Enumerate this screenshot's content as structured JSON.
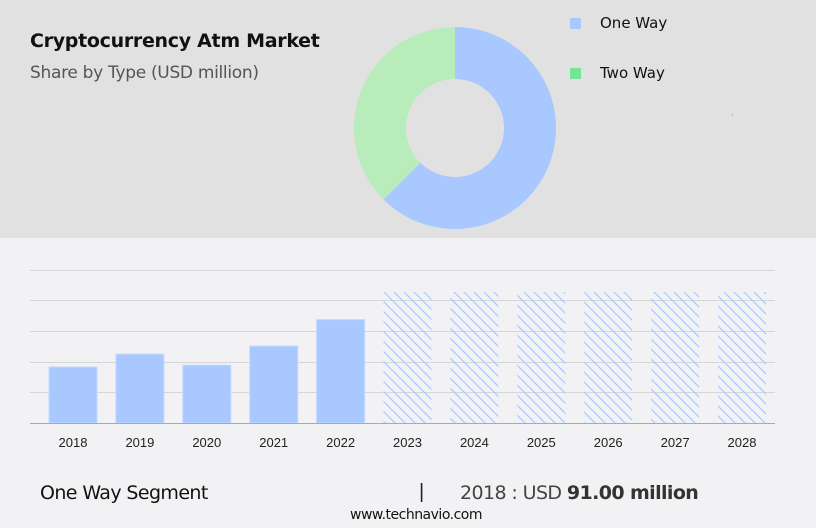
{
  "header": {
    "title": "Cryptocurrency Atm Market",
    "subtitle": "Share by Type (USD million)"
  },
  "legend": [
    {
      "label": "One Way",
      "color": "#a8c8ff"
    },
    {
      "label": "Two Way",
      "color": "#77e394"
    }
  ],
  "footer": {
    "segment_label": "One Way Segment",
    "separator": "|",
    "value_prefix": "2018 : USD ",
    "value_bold": "91.00 million",
    "url": "www.technavio.com"
  },
  "colors": {
    "one_way": "#a8c8ff",
    "two_way_donut": "#b8edbb",
    "two_way_legend": "#77e394",
    "forecast_hatch": "#a8c8ff",
    "top_panel_bg": "#e1e1e1",
    "bottom_panel_bg": "#f2f2f4",
    "gridline": "#d6d6d6",
    "axis": "#aaaaaa"
  },
  "chart_data": [
    {
      "type": "pie",
      "variant": "donut",
      "title": "Cryptocurrency Atm Market",
      "subtitle": "Share by Type (USD million)",
      "categories": [
        "One Way",
        "Two Way"
      ],
      "values": [
        62.5,
        37.5
      ],
      "unit": "percent (estimated share)",
      "legend_position": "right"
    },
    {
      "type": "bar",
      "title": "One Way Segment",
      "categories": [
        "2018",
        "2019",
        "2020",
        "2021",
        "2022",
        "2023",
        "2024",
        "2025",
        "2026",
        "2027",
        "2028"
      ],
      "values": [
        91.0,
        112,
        94,
        125,
        168,
        null,
        null,
        null,
        null,
        null,
        null
      ],
      "forecast": [
        false,
        false,
        false,
        false,
        false,
        true,
        true,
        true,
        true,
        true,
        true
      ],
      "forecast_display_height": 202,
      "ylabel": "USD million",
      "xlabel": "",
      "y_axis_labels_shown": false,
      "grid": true,
      "gridline_count": 5,
      "ylim": [
        0,
        235
      ],
      "annotation": "2018 : USD 91.00 million"
    }
  ]
}
